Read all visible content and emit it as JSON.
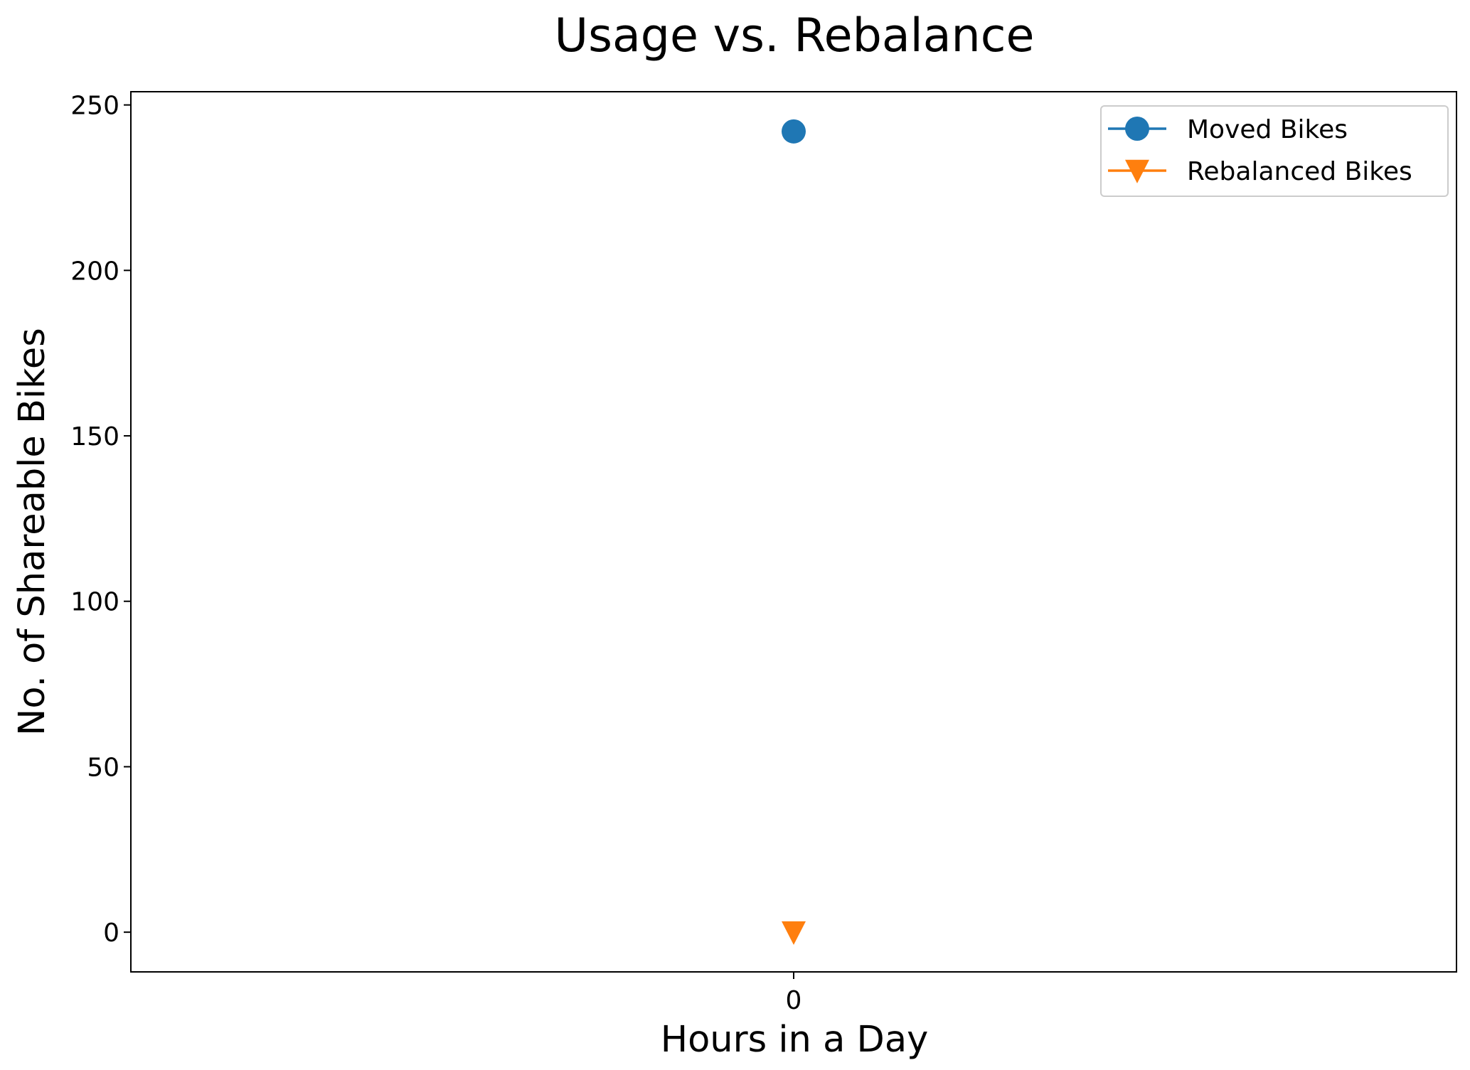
{
  "chart_data": {
    "type": "scatter",
    "title": "Usage vs. Rebalance",
    "xlabel": "Hours in a Day",
    "ylabel": "No. of Shareable Bikes",
    "x_ticks": [
      "0"
    ],
    "y_ticks": [
      0,
      50,
      100,
      150,
      200,
      250
    ],
    "ylim": [
      -12,
      254
    ],
    "xlim": [
      -0.05,
      0.05
    ],
    "grid": false,
    "legend_position": "top-right",
    "series": [
      {
        "name": "Moved Bikes",
        "x": [
          0
        ],
        "values": [
          242
        ],
        "color": "#1f77b4",
        "marker": "circle"
      },
      {
        "name": "Rebalanced Bikes",
        "x": [
          0
        ],
        "values": [
          0
        ],
        "color": "#ff7f0e",
        "marker": "triangle-down"
      }
    ]
  }
}
